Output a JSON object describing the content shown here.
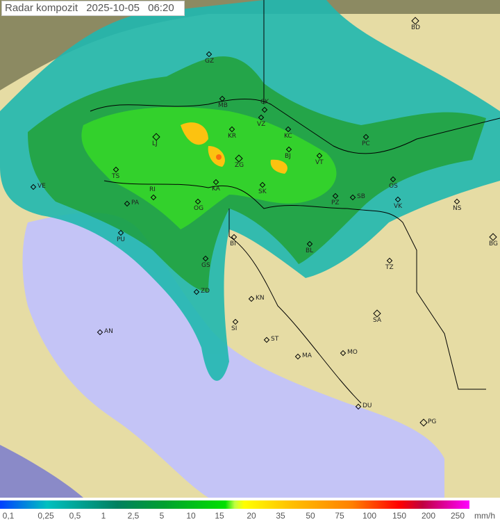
{
  "header": {
    "title": "Radar kompozit",
    "date": "2025-10-05",
    "time": "06:20"
  },
  "legend": {
    "unit": "mm/h",
    "ticks": [
      "0,1",
      "0,25",
      "0,5",
      "1",
      "2,5",
      "5",
      "10",
      "15",
      "20",
      "35",
      "50",
      "75",
      "100",
      "150",
      "200",
      "250"
    ]
  },
  "cities": [
    "BD",
    "GZ",
    "MB",
    "CK",
    "KR",
    "VZ",
    "KC",
    "LJ",
    "ZG",
    "BJ",
    "VT",
    "PC",
    "TS",
    "VE",
    "RI",
    "KA",
    "SK",
    "OS",
    "PZ",
    "SB",
    "VK",
    "NS",
    "PA",
    "OG",
    "PU",
    "BI",
    "BL",
    "BG",
    "TZ",
    "GS",
    "ZD",
    "KN",
    "SA",
    "SI",
    "AN",
    "ST",
    "MA",
    "MO",
    "DU",
    "PG"
  ],
  "colors": {
    "sea": "#c4c4f6",
    "land": "#e6dca4",
    "outside": "#8c8a62",
    "radar_low": "#20c0c0",
    "radar_mid": "#20c020",
    "radar_high": "#ffd000"
  }
}
